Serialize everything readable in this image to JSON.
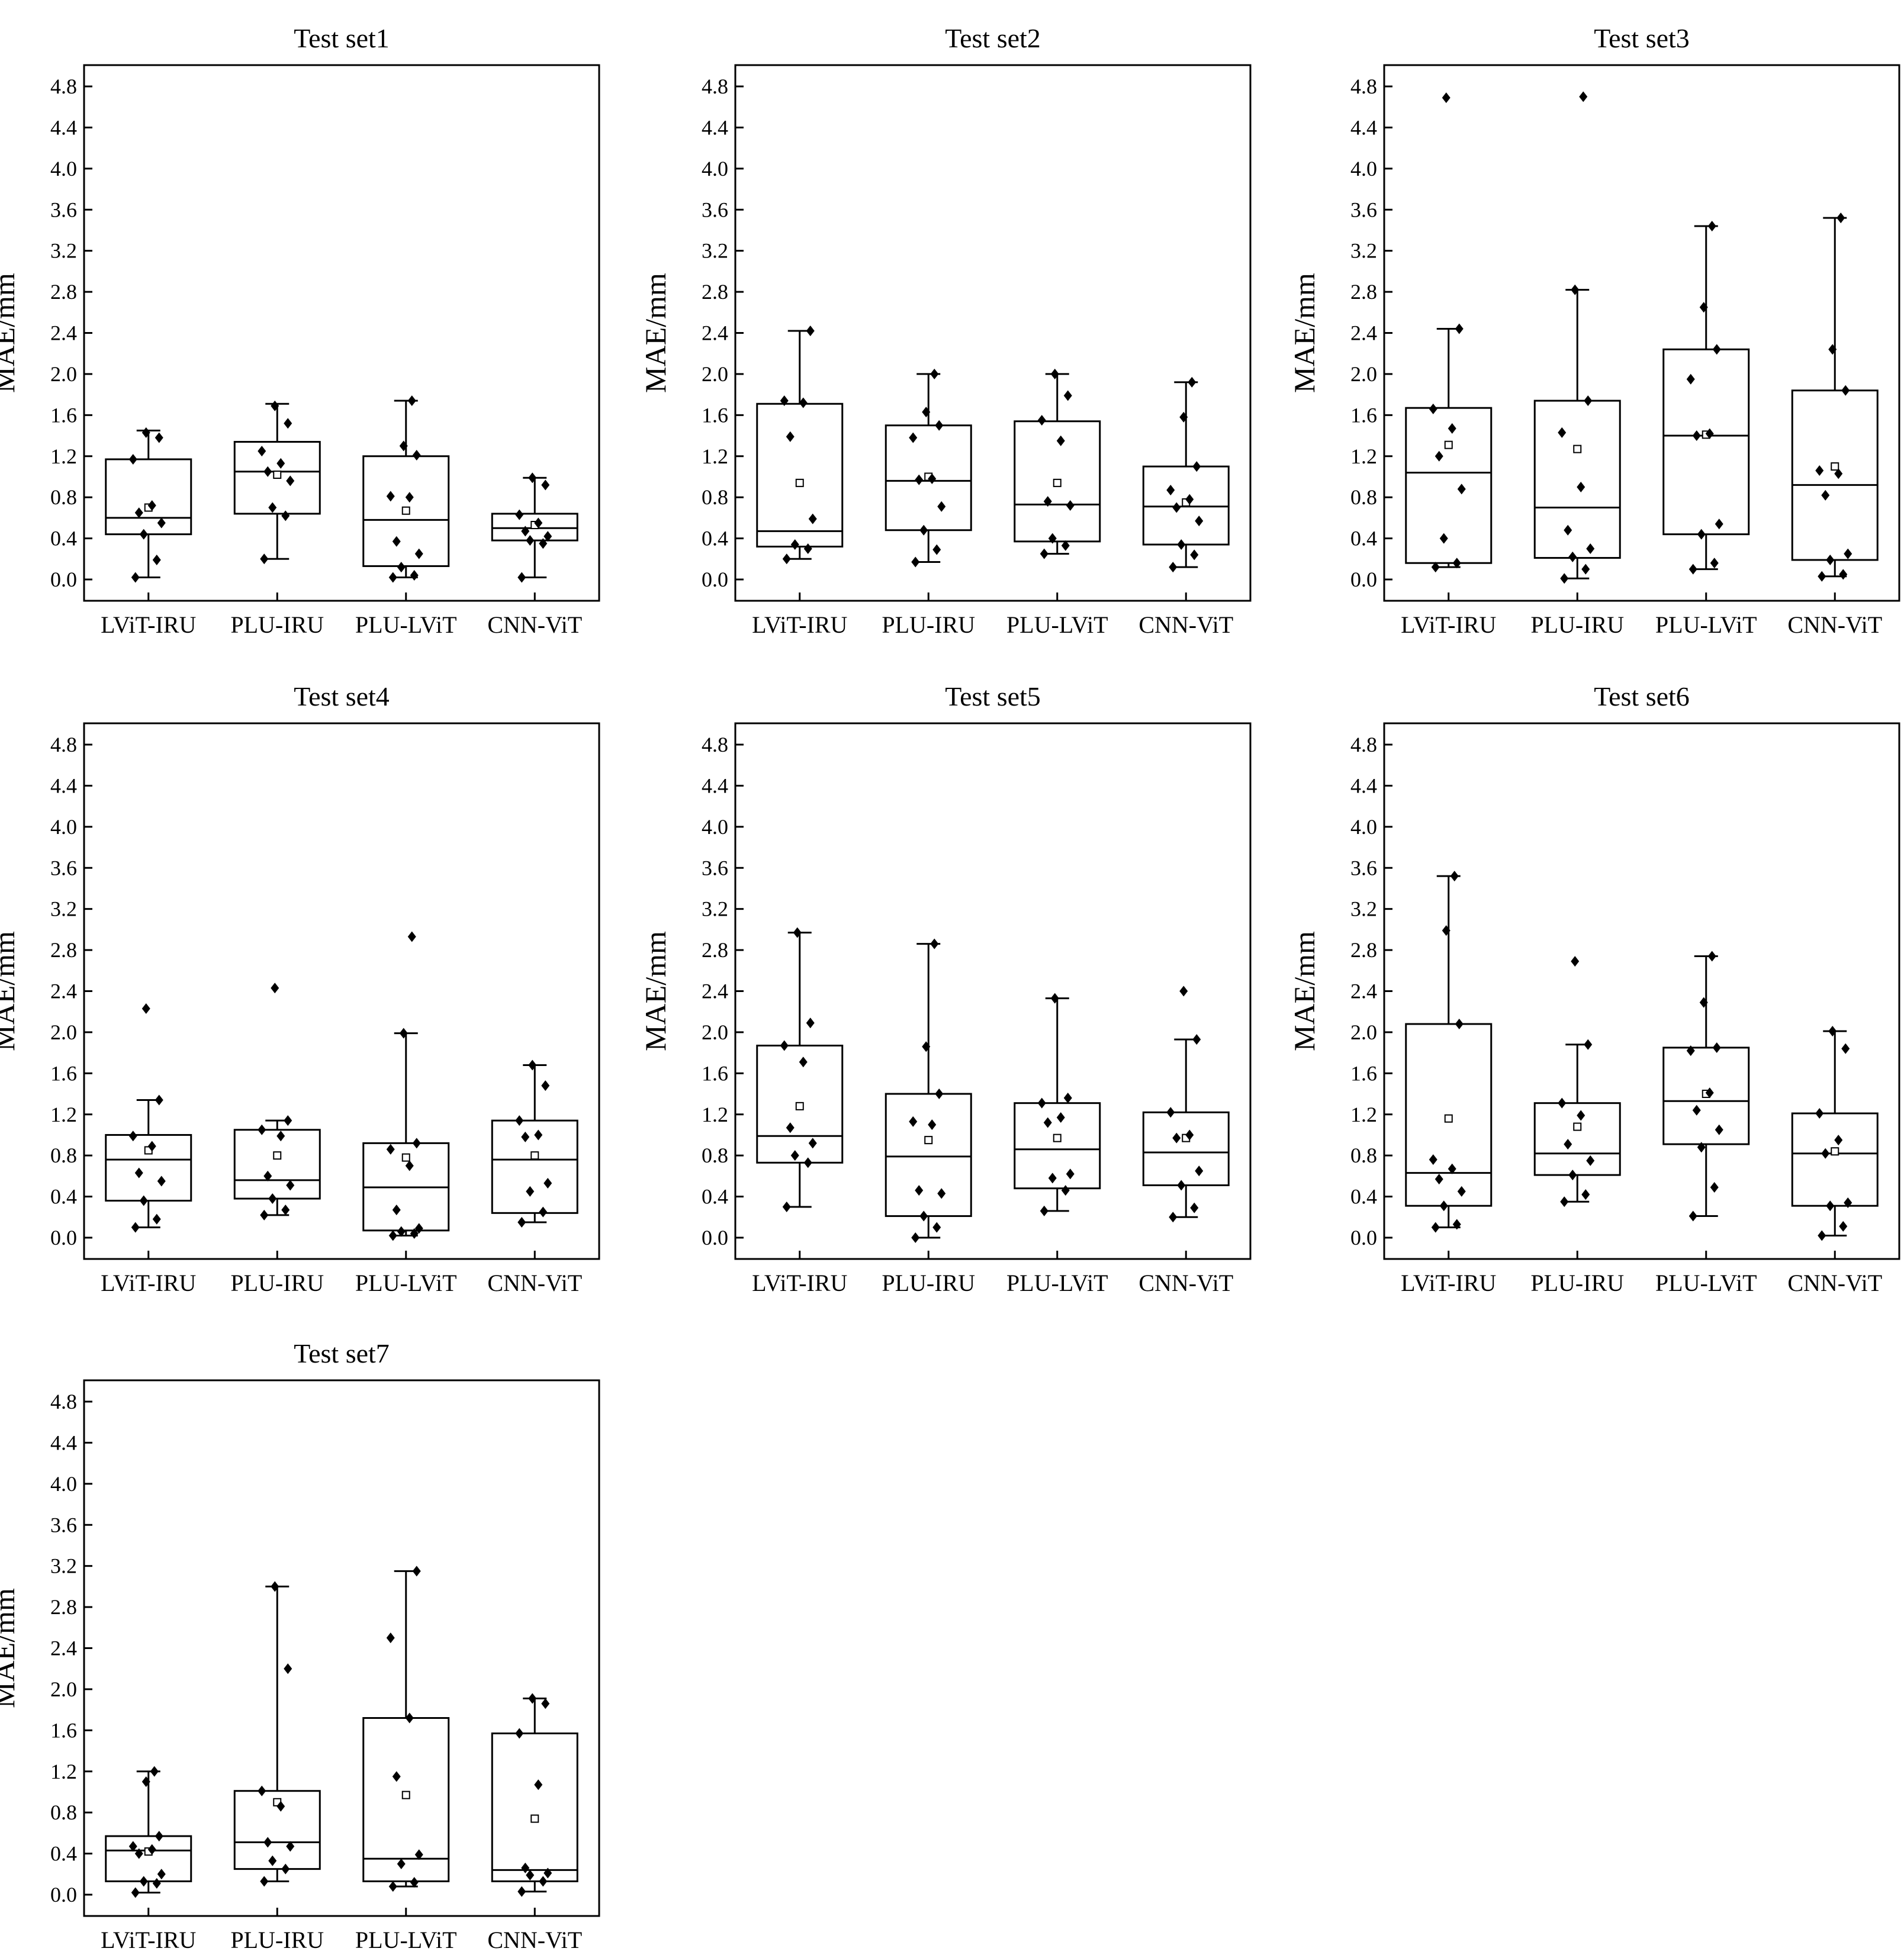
{
  "chart_data": [
    {
      "type": "box",
      "title": "Test set1",
      "ylabel": "MAE/mm",
      "ylim": [
        0,
        4.8
      ],
      "yticks": [
        "0.0",
        "0.4",
        "0.8",
        "1.2",
        "1.6",
        "2.0",
        "2.4",
        "2.8",
        "3.2",
        "3.6",
        "4.0",
        "4.4",
        "4.8"
      ],
      "categories": [
        "LViT-IRU",
        "PLU-IRU",
        "PLU-LViT",
        "CNN-ViT"
      ],
      "boxes": [
        {
          "min": 0.02,
          "q1": 0.44,
          "median": 0.6,
          "q3": 1.17,
          "max": 1.45,
          "mean": 0.7,
          "points": [
            0.02,
            0.19,
            0.44,
            0.55,
            0.65,
            0.72,
            1.17,
            1.38,
            1.43
          ]
        },
        {
          "min": 0.2,
          "q1": 0.64,
          "median": 1.05,
          "q3": 1.34,
          "max": 1.71,
          "mean": 1.02,
          "points": [
            0.2,
            0.62,
            0.7,
            0.96,
            1.05,
            1.13,
            1.25,
            1.52,
            1.69
          ]
        },
        {
          "min": 0.02,
          "q1": 0.13,
          "median": 0.58,
          "q3": 1.2,
          "max": 1.74,
          "mean": 0.67,
          "points": [
            0.02,
            0.04,
            0.12,
            0.25,
            0.37,
            0.8,
            0.81,
            1.21,
            1.3,
            1.74
          ]
        },
        {
          "min": 0.02,
          "q1": 0.38,
          "median": 0.5,
          "q3": 0.64,
          "max": 0.99,
          "mean": 0.53,
          "points": [
            0.02,
            0.35,
            0.38,
            0.42,
            0.47,
            0.55,
            0.63,
            0.92,
            0.99
          ]
        }
      ]
    },
    {
      "type": "box",
      "title": "Test set2",
      "ylabel": "MAE/mm",
      "ylim": [
        0,
        4.8
      ],
      "yticks": [
        "0.0",
        "0.4",
        "0.8",
        "1.2",
        "1.6",
        "2.0",
        "2.4",
        "2.8",
        "3.2",
        "3.6",
        "4.0",
        "4.4",
        "4.8"
      ],
      "categories": [
        "LViT-IRU",
        "PLU-IRU",
        "PLU-LViT",
        "CNN-ViT"
      ],
      "boxes": [
        {
          "min": 0.2,
          "q1": 0.32,
          "median": 0.47,
          "q3": 1.71,
          "max": 2.42,
          "mean": 0.94,
          "points": [
            0.2,
            0.3,
            0.34,
            0.59,
            1.39,
            1.72,
            1.74,
            2.42
          ]
        },
        {
          "min": 0.17,
          "q1": 0.48,
          "median": 0.96,
          "q3": 1.5,
          "max": 2.0,
          "mean": 1.0,
          "points": [
            0.17,
            0.29,
            0.48,
            0.71,
            0.97,
            0.98,
            1.38,
            1.5,
            1.63,
            2.0
          ]
        },
        {
          "min": 0.25,
          "q1": 0.37,
          "median": 0.73,
          "q3": 1.54,
          "max": 2.0,
          "mean": 0.94,
          "points": [
            0.25,
            0.33,
            0.4,
            0.72,
            0.76,
            1.35,
            1.55,
            1.79,
            2.0
          ]
        },
        {
          "min": 0.12,
          "q1": 0.34,
          "median": 0.71,
          "q3": 1.1,
          "max": 1.92,
          "mean": 0.75,
          "points": [
            0.12,
            0.24,
            0.34,
            0.57,
            0.7,
            0.78,
            0.87,
            1.1,
            1.58,
            1.92
          ]
        }
      ]
    },
    {
      "type": "box",
      "title": "Test set3",
      "ylabel": "MAE/mm",
      "ylim": [
        0,
        4.8
      ],
      "yticks": [
        "0.0",
        "0.4",
        "0.8",
        "1.2",
        "1.6",
        "2.0",
        "2.4",
        "2.8",
        "3.2",
        "3.6",
        "4.0",
        "4.4",
        "4.8"
      ],
      "categories": [
        "LViT-IRU",
        "PLU-IRU",
        "PLU-LViT",
        "CNN-ViT"
      ],
      "boxes": [
        {
          "min": 0.12,
          "q1": 0.16,
          "median": 1.04,
          "q3": 1.67,
          "max": 2.44,
          "mean": 1.31,
          "points": [
            0.12,
            0.16,
            0.4,
            0.88,
            1.2,
            1.47,
            1.66,
            2.44,
            4.69
          ]
        },
        {
          "min": 0.01,
          "q1": 0.21,
          "median": 0.7,
          "q3": 1.74,
          "max": 2.82,
          "mean": 1.27,
          "points": [
            0.01,
            0.1,
            0.22,
            0.3,
            0.48,
            0.9,
            1.43,
            1.74,
            2.82,
            4.7
          ]
        },
        {
          "min": 0.1,
          "q1": 0.44,
          "median": 1.4,
          "q3": 2.24,
          "max": 3.44,
          "mean": 1.41,
          "points": [
            0.1,
            0.16,
            0.44,
            0.54,
            1.4,
            1.42,
            1.95,
            2.24,
            2.65,
            3.44
          ]
        },
        {
          "min": 0.03,
          "q1": 0.19,
          "median": 0.92,
          "q3": 1.84,
          "max": 3.52,
          "mean": 1.1,
          "points": [
            0.03,
            0.05,
            0.19,
            0.25,
            0.82,
            1.03,
            1.06,
            1.84,
            2.24,
            3.52
          ]
        }
      ]
    },
    {
      "type": "box",
      "title": "Test set4",
      "ylabel": "MAE/mm",
      "ylim": [
        0,
        4.8
      ],
      "yticks": [
        "0.0",
        "0.4",
        "0.8",
        "1.2",
        "1.6",
        "2.0",
        "2.4",
        "2.8",
        "3.2",
        "3.6",
        "4.0",
        "4.4",
        "4.8"
      ],
      "categories": [
        "LViT-IRU",
        "PLU-IRU",
        "PLU-LViT",
        "CNN-ViT"
      ],
      "boxes": [
        {
          "min": 0.1,
          "q1": 0.36,
          "median": 0.76,
          "q3": 1.0,
          "max": 1.34,
          "mean": 0.85,
          "points": [
            0.1,
            0.18,
            0.36,
            0.55,
            0.63,
            0.89,
            0.99,
            1.34,
            2.23
          ]
        },
        {
          "min": 0.22,
          "q1": 0.38,
          "median": 0.56,
          "q3": 1.05,
          "max": 1.14,
          "mean": 0.8,
          "points": [
            0.22,
            0.27,
            0.38,
            0.51,
            0.6,
            0.99,
            1.05,
            1.14,
            2.43
          ]
        },
        {
          "min": 0.02,
          "q1": 0.07,
          "median": 0.49,
          "q3": 0.92,
          "max": 1.99,
          "mean": 0.78,
          "points": [
            0.02,
            0.04,
            0.06,
            0.09,
            0.27,
            0.7,
            0.86,
            0.92,
            1.99,
            2.93
          ]
        },
        {
          "min": 0.15,
          "q1": 0.24,
          "median": 0.76,
          "q3": 1.14,
          "max": 1.68,
          "mean": 0.8,
          "points": [
            0.15,
            0.25,
            0.45,
            0.53,
            0.98,
            1.0,
            1.14,
            1.48,
            1.68
          ]
        }
      ]
    },
    {
      "type": "box",
      "title": "Test set5",
      "ylabel": "MAE/mm",
      "ylim": [
        0,
        4.8
      ],
      "yticks": [
        "0.0",
        "0.4",
        "0.8",
        "1.2",
        "1.6",
        "2.0",
        "2.4",
        "2.8",
        "3.2",
        "3.6",
        "4.0",
        "4.4",
        "4.8"
      ],
      "categories": [
        "LViT-IRU",
        "PLU-IRU",
        "PLU-LViT",
        "CNN-ViT"
      ],
      "boxes": [
        {
          "min": 0.3,
          "q1": 0.73,
          "median": 0.99,
          "q3": 1.87,
          "max": 2.97,
          "mean": 1.28,
          "points": [
            0.3,
            0.73,
            0.8,
            0.92,
            1.07,
            1.71,
            1.87,
            2.09,
            2.97
          ]
        },
        {
          "min": 0.0,
          "q1": 0.21,
          "median": 0.79,
          "q3": 1.4,
          "max": 2.86,
          "mean": 0.95,
          "points": [
            0.0,
            0.1,
            0.21,
            0.43,
            0.46,
            1.1,
            1.13,
            1.4,
            1.86,
            2.86
          ]
        },
        {
          "min": 0.26,
          "q1": 0.48,
          "median": 0.86,
          "q3": 1.31,
          "max": 2.33,
          "mean": 0.97,
          "points": [
            0.26,
            0.46,
            0.58,
            0.62,
            1.12,
            1.17,
            1.31,
            1.36,
            2.33
          ]
        },
        {
          "min": 0.2,
          "q1": 0.51,
          "median": 0.83,
          "q3": 1.22,
          "max": 1.93,
          "mean": 0.97,
          "points": [
            0.2,
            0.29,
            0.51,
            0.65,
            0.97,
            1.0,
            1.22,
            1.93,
            2.4
          ]
        }
      ]
    },
    {
      "type": "box",
      "title": "Test set6",
      "ylabel": "MAE/mm",
      "ylim": [
        0,
        4.8
      ],
      "yticks": [
        "0.0",
        "0.4",
        "0.8",
        "1.2",
        "1.6",
        "2.0",
        "2.4",
        "2.8",
        "3.2",
        "3.6",
        "4.0",
        "4.4",
        "4.8"
      ],
      "categories": [
        "LViT-IRU",
        "PLU-IRU",
        "PLU-LViT",
        "CNN-ViT"
      ],
      "boxes": [
        {
          "min": 0.1,
          "q1": 0.31,
          "median": 0.63,
          "q3": 2.08,
          "max": 3.52,
          "mean": 1.16,
          "points": [
            0.1,
            0.13,
            0.31,
            0.45,
            0.57,
            0.67,
            0.76,
            2.08,
            2.99,
            3.52
          ]
        },
        {
          "min": 0.35,
          "q1": 0.61,
          "median": 0.82,
          "q3": 1.31,
          "max": 1.88,
          "mean": 1.08,
          "points": [
            0.35,
            0.42,
            0.61,
            0.75,
            0.91,
            1.19,
            1.31,
            1.88,
            2.69
          ]
        },
        {
          "min": 0.21,
          "q1": 0.91,
          "median": 1.33,
          "q3": 1.85,
          "max": 2.74,
          "mean": 1.4,
          "points": [
            0.21,
            0.49,
            0.88,
            1.05,
            1.24,
            1.41,
            1.82,
            1.85,
            2.29,
            2.74
          ]
        },
        {
          "min": 0.02,
          "q1": 0.31,
          "median": 0.82,
          "q3": 1.21,
          "max": 2.01,
          "mean": 0.84,
          "points": [
            0.02,
            0.11,
            0.31,
            0.34,
            0.82,
            0.95,
            1.21,
            1.84,
            2.01
          ]
        }
      ]
    },
    {
      "type": "box",
      "title": "Test set7",
      "ylabel": "MAE/mm",
      "ylim": [
        0,
        4.8
      ],
      "yticks": [
        "0.0",
        "0.4",
        "0.8",
        "1.2",
        "1.6",
        "2.0",
        "2.4",
        "2.8",
        "3.2",
        "3.6",
        "4.0",
        "4.4",
        "4.8"
      ],
      "categories": [
        "LViT-IRU",
        "PLU-IRU",
        "PLU-LViT",
        "CNN-ViT"
      ],
      "boxes": [
        {
          "min": 0.02,
          "q1": 0.13,
          "median": 0.43,
          "q3": 0.57,
          "max": 1.2,
          "mean": 0.42,
          "points": [
            0.02,
            0.11,
            0.13,
            0.2,
            0.4,
            0.44,
            0.47,
            0.57,
            1.1,
            1.2
          ]
        },
        {
          "min": 0.13,
          "q1": 0.25,
          "median": 0.51,
          "q3": 1.01,
          "max": 3.0,
          "mean": 0.9,
          "points": [
            0.13,
            0.25,
            0.33,
            0.47,
            0.51,
            0.86,
            1.01,
            2.2,
            3.0
          ]
        },
        {
          "min": 0.08,
          "q1": 0.13,
          "median": 0.35,
          "q3": 1.72,
          "max": 3.15,
          "mean": 0.97,
          "points": [
            0.08,
            0.12,
            0.3,
            0.39,
            1.15,
            1.72,
            2.5,
            3.15
          ]
        },
        {
          "min": 0.03,
          "q1": 0.13,
          "median": 0.24,
          "q3": 1.57,
          "max": 1.91,
          "mean": 0.74,
          "points": [
            0.03,
            0.13,
            0.19,
            0.21,
            0.26,
            1.07,
            1.57,
            1.86,
            1.91
          ]
        }
      ]
    }
  ]
}
